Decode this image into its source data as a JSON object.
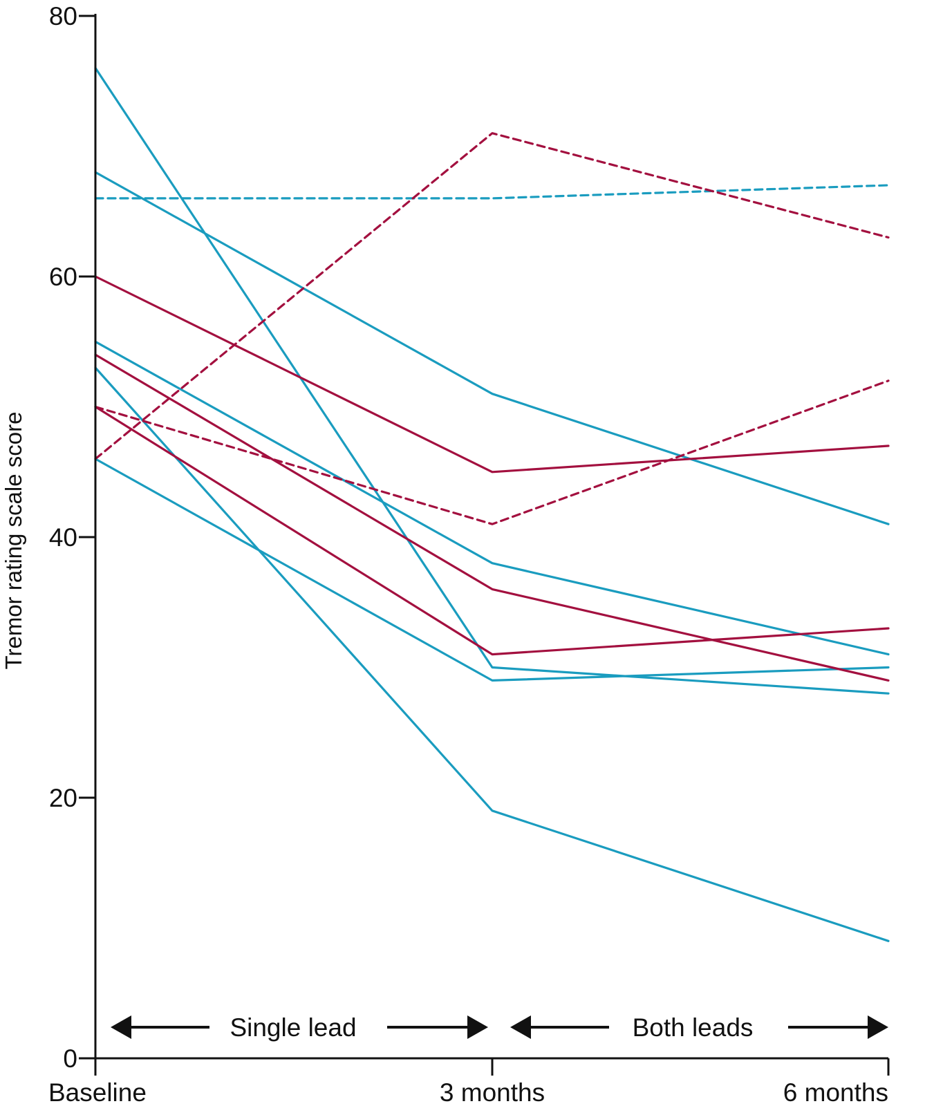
{
  "chart_data": {
    "type": "line",
    "title": "",
    "xlabel": "",
    "ylabel": "Tremor rating scale score",
    "ylim": [
      0,
      80
    ],
    "yticks": [
      0,
      20,
      40,
      60,
      80
    ],
    "categories": [
      "Baseline",
      "3 months",
      "6 months"
    ],
    "grid": false,
    "legend": "none",
    "colors": {
      "blue": "#1a9cbf",
      "red": "#a3103f",
      "axis": "#111111"
    },
    "phases": [
      {
        "label": "Single lead",
        "from": "Baseline",
        "to": "3 months"
      },
      {
        "label": "Both leads",
        "from": "3 months",
        "to": "6 months"
      }
    ],
    "series": [
      {
        "color": "blue",
        "dashed": false,
        "values": [
          76,
          30,
          28
        ]
      },
      {
        "color": "blue",
        "dashed": false,
        "values": [
          68,
          51,
          41
        ]
      },
      {
        "color": "blue",
        "dashed": true,
        "values": [
          66,
          66,
          67
        ]
      },
      {
        "color": "blue",
        "dashed": false,
        "values": [
          55,
          38,
          31
        ]
      },
      {
        "color": "blue",
        "dashed": false,
        "values": [
          53,
          19,
          9
        ]
      },
      {
        "color": "blue",
        "dashed": false,
        "values": [
          46,
          29,
          30
        ]
      },
      {
        "color": "red",
        "dashed": true,
        "values": [
          46,
          71,
          63
        ]
      },
      {
        "color": "red",
        "dashed": false,
        "values": [
          60,
          45,
          47
        ]
      },
      {
        "color": "red",
        "dashed": false,
        "values": [
          54,
          36,
          29
        ]
      },
      {
        "color": "red",
        "dashed": false,
        "values": [
          50,
          31,
          33
        ]
      },
      {
        "color": "red",
        "dashed": true,
        "values": [
          50,
          41,
          52
        ]
      }
    ]
  }
}
